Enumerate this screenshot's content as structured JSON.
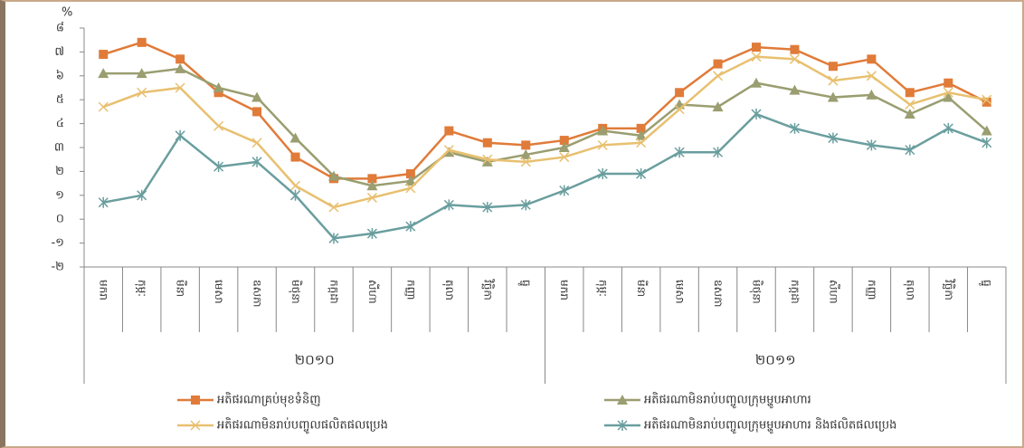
{
  "chart_data": {
    "type": "line",
    "y_label": "%",
    "categories": [
      "មករា",
      "កុម្ភៈ",
      "មីនា",
      "មេសា",
      "ឧសភា",
      "មិថុនា",
      "កក្កដា",
      "សីហា",
      "កញ្ញា",
      "តុលា",
      "វិច្ឆិកា",
      "ធ្នូ",
      "មករា",
      "កុម្ភៈ",
      "មីនា",
      "មេសា",
      "ឧសភា",
      "មិថុនា",
      "កក្កដា",
      "សីហា",
      "កញ្ញា",
      "តុលា",
      "វិច្ឆិកា",
      "ធ្នូ"
    ],
    "groups": [
      {
        "label": "២០១០",
        "span": 12
      },
      {
        "label": "២០១១",
        "span": 12
      }
    ],
    "ylim": [
      -2,
      8
    ],
    "yticks": [
      {
        "value": -2,
        "label": "-២"
      },
      {
        "value": -1,
        "label": "-១"
      },
      {
        "value": 0,
        "label": "០"
      },
      {
        "value": 1,
        "label": "១"
      },
      {
        "value": 2,
        "label": "២"
      },
      {
        "value": 3,
        "label": "៣"
      },
      {
        "value": 4,
        "label": "៤"
      },
      {
        "value": 5,
        "label": "៥"
      },
      {
        "value": 6,
        "label": "៦"
      },
      {
        "value": 7,
        "label": "៧"
      },
      {
        "value": 8,
        "label": "៨"
      }
    ],
    "series": [
      {
        "name": "អតិផរណាគ្រប់មុខទំនិញ",
        "color": "#e07b39",
        "marker": "square",
        "values": [
          6.9,
          7.4,
          6.7,
          5.3,
          4.5,
          2.6,
          1.7,
          1.7,
          1.9,
          3.7,
          3.2,
          3.1,
          3.3,
          3.8,
          3.8,
          5.3,
          6.5,
          7.2,
          7.1,
          6.4,
          6.7,
          5.3,
          5.7,
          4.9
        ]
      },
      {
        "name": "អតិផរណាមិនរាប់បញ្ចូលក្រុមម្ហូបអាហារ",
        "color": "#9a9e70",
        "marker": "triangle",
        "values": [
          6.1,
          6.1,
          6.3,
          5.5,
          5.1,
          3.4,
          1.8,
          1.4,
          1.6,
          2.8,
          2.4,
          2.7,
          3.0,
          3.7,
          3.5,
          4.8,
          4.7,
          5.7,
          5.4,
          5.1,
          5.2,
          4.4,
          5.1,
          3.7
        ]
      },
      {
        "name": "អតិផរណាមិនរាប់បញ្ចូលផលិតផលប្រេង",
        "color": "#e8c070",
        "marker": "x",
        "values": [
          4.7,
          5.3,
          5.5,
          3.9,
          3.2,
          1.4,
          0.5,
          0.9,
          1.3,
          2.9,
          2.5,
          2.4,
          2.6,
          3.1,
          3.2,
          4.6,
          6.0,
          6.8,
          6.7,
          5.8,
          6.0,
          4.8,
          5.3,
          5.0
        ]
      },
      {
        "name": "អតិផរណាមិនរាប់បញ្ចូលក្រុមម្ហូបអាហារ និងផលិតផលប្រេង",
        "color": "#6a9e9e",
        "marker": "star",
        "values": [
          0.7,
          1.0,
          3.5,
          2.2,
          2.4,
          1.0,
          -0.8,
          -0.6,
          -0.3,
          0.6,
          0.5,
          0.6,
          1.2,
          1.9,
          1.9,
          2.8,
          2.8,
          4.4,
          3.8,
          3.4,
          3.1,
          2.9,
          3.8,
          3.2
        ]
      }
    ]
  }
}
